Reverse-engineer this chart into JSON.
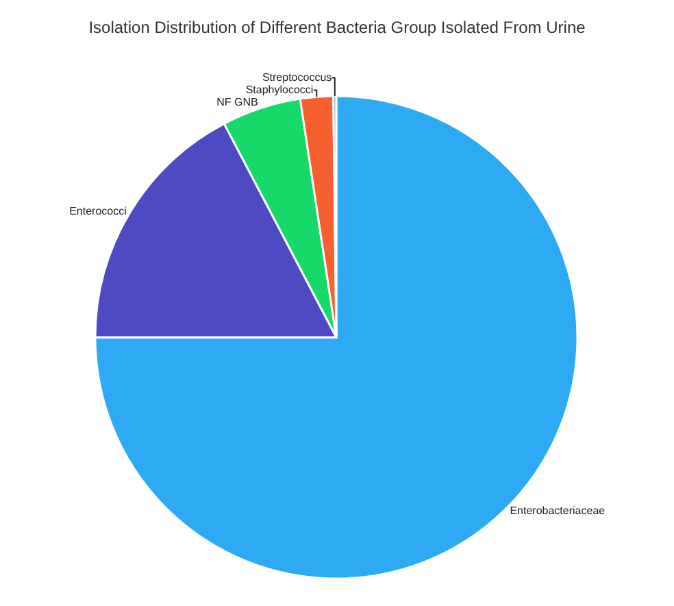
{
  "chart_data": {
    "type": "pie",
    "title": "Isolation Distribution of Different Bacteria Group Isolated From Urine",
    "categories": [
      "Enterobacteriaceae",
      "Enterococci",
      "NF GNB",
      "Staphylococci",
      "Streptococcus"
    ],
    "values": [
      75,
      17.3,
      5.3,
      2.2,
      0.2
    ],
    "colors": [
      "#2eaaf5",
      "#4f4ac4",
      "#16d96a",
      "#f5602e",
      "#a0b4d0"
    ],
    "legend": false
  }
}
